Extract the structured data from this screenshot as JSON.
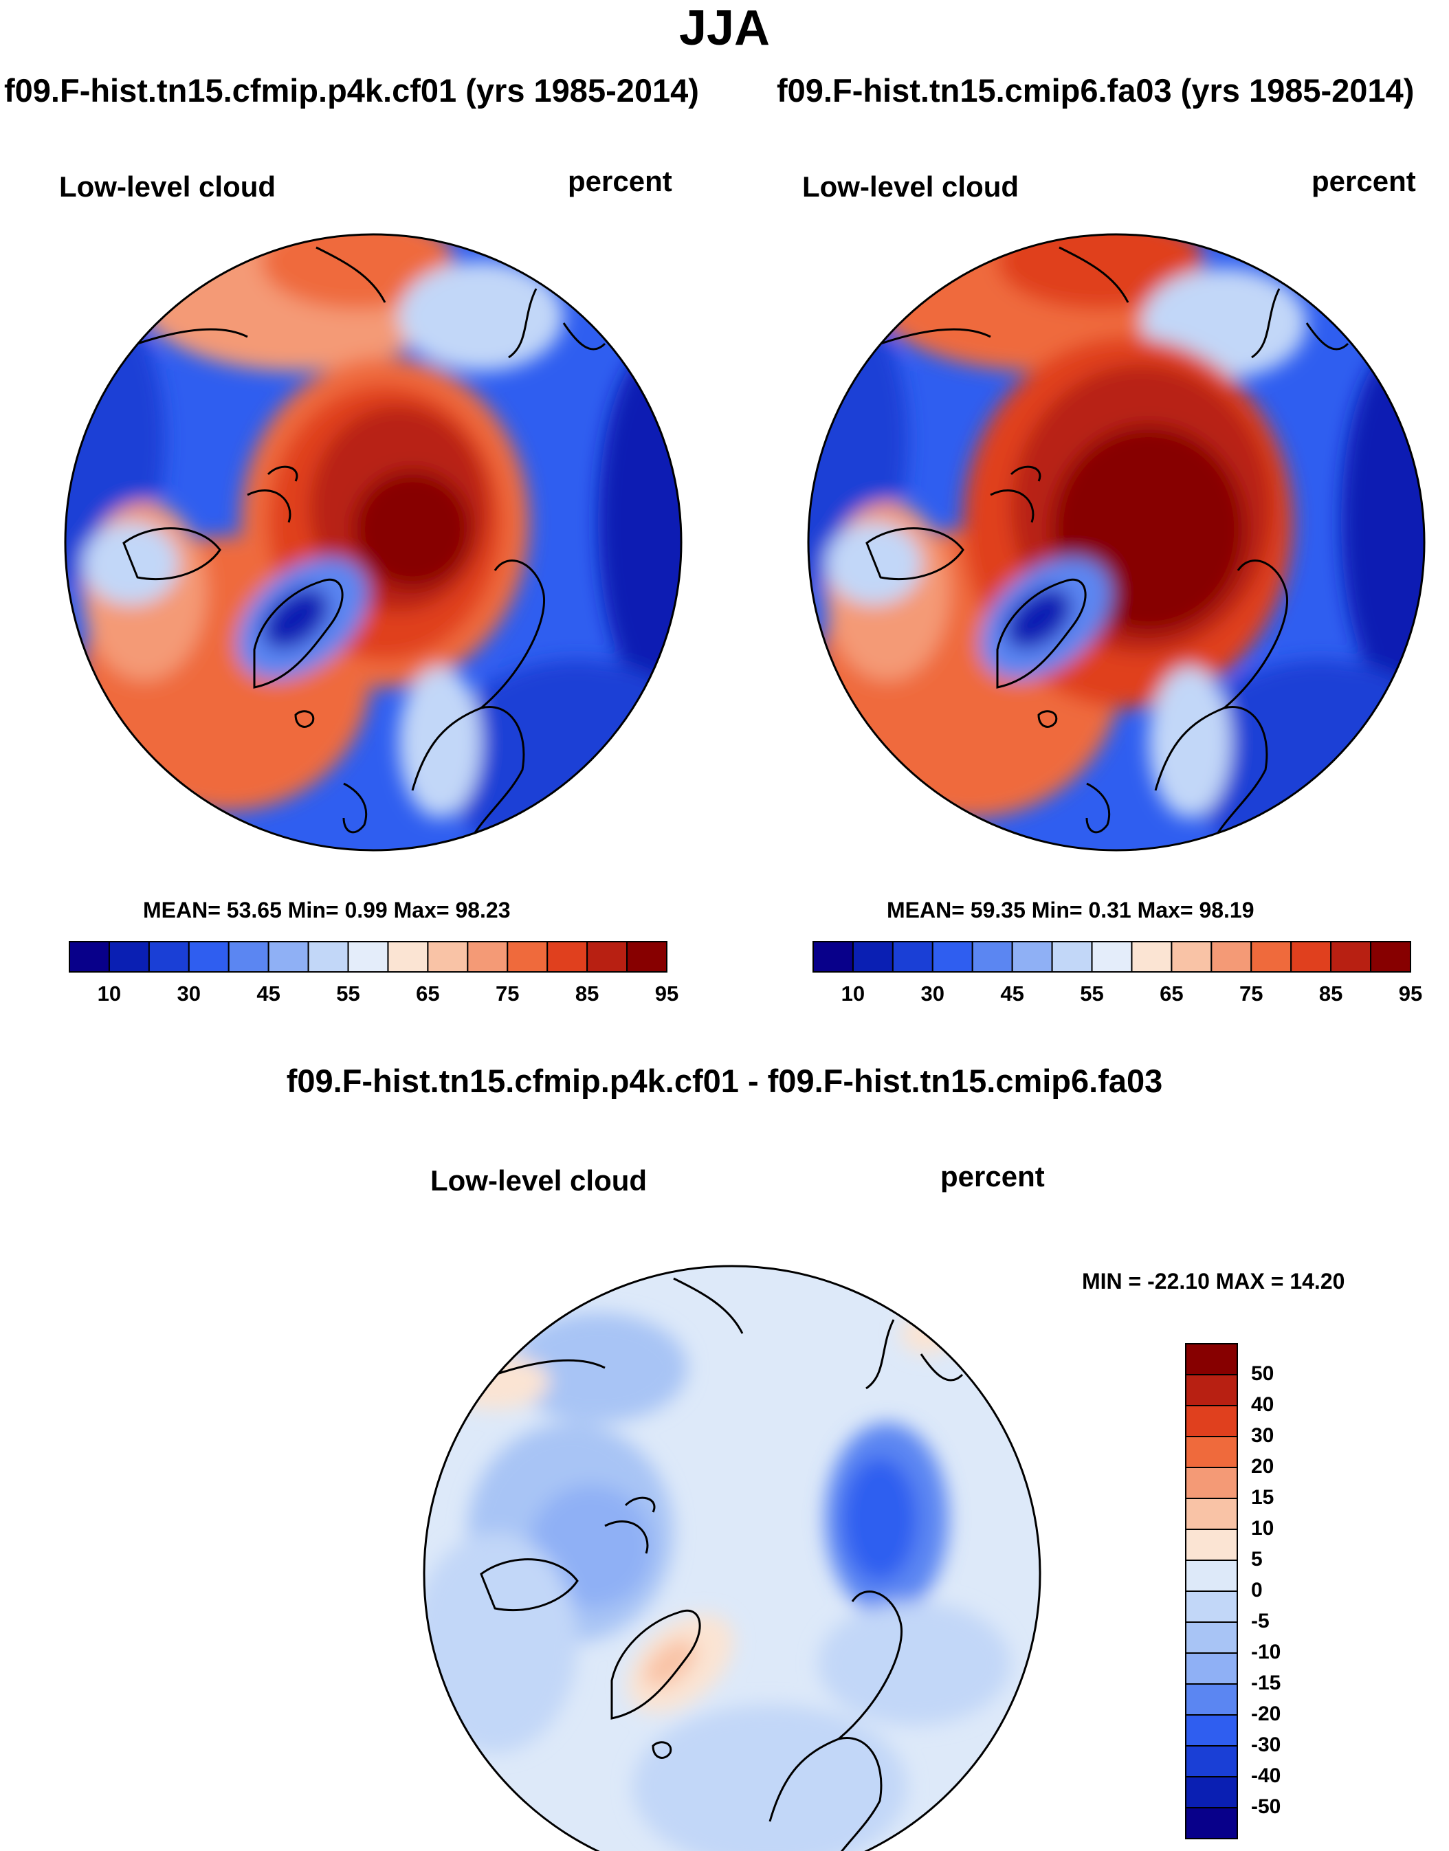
{
  "figure": {
    "title": "JJA",
    "panels": [
      {
        "id": "left",
        "case_title": "f09.F-hist.tn15.cfmip.p4k.cf01 (yrs 1985-2014)",
        "variable_label": "Low-level cloud",
        "units_label": "percent",
        "stats_text": "MEAN=  53.65  Min=   0.99  Max=  98.23"
      },
      {
        "id": "right",
        "case_title": "f09.F-hist.tn15.cmip6.fa03 (yrs 1985-2014)",
        "variable_label": "Low-level cloud",
        "units_label": "percent",
        "stats_text": "MEAN=  59.35  Min=   0.31  Max=  98.19"
      },
      {
        "id": "diff",
        "case_title": "f09.F-hist.tn15.cfmip.p4k.cf01 - f09.F-hist.tn15.cmip6.fa03",
        "variable_label": "Low-level cloud",
        "units_label": "percent",
        "stats_text": "MIN = -22.10 MAX =  14.20"
      }
    ]
  },
  "colorbars": {
    "abs": {
      "colors": [
        "#08008a",
        "#0a1fb3",
        "#1a3fd6",
        "#2f5ef0",
        "#5b86f2",
        "#8fb0f5",
        "#c2d7f8",
        "#e4edfa",
        "#fbe4d3",
        "#f9c3a6",
        "#f49a76",
        "#ef6a3c",
        "#e0401e",
        "#b82012",
        "#870000"
      ],
      "tick_labels": [
        "10",
        "30",
        "45",
        "55",
        "65",
        "75",
        "85",
        "95"
      ]
    },
    "diff": {
      "colors": [
        "#870000",
        "#b82012",
        "#e0401e",
        "#ef6a3c",
        "#f49a76",
        "#f9c3a6",
        "#fbe4d3",
        "#dde9f9",
        "#c2d7f8",
        "#a8c4f5",
        "#8fb0f5",
        "#5b86f2",
        "#2f5ef0",
        "#1a3fd6",
        "#0a1fb3",
        "#08008a"
      ],
      "tick_labels": [
        "50",
        "40",
        "30",
        "20",
        "15",
        "10",
        "5",
        "0",
        "-5",
        "-10",
        "-15",
        "-20",
        "-30",
        "-40",
        "-50"
      ]
    }
  }
}
